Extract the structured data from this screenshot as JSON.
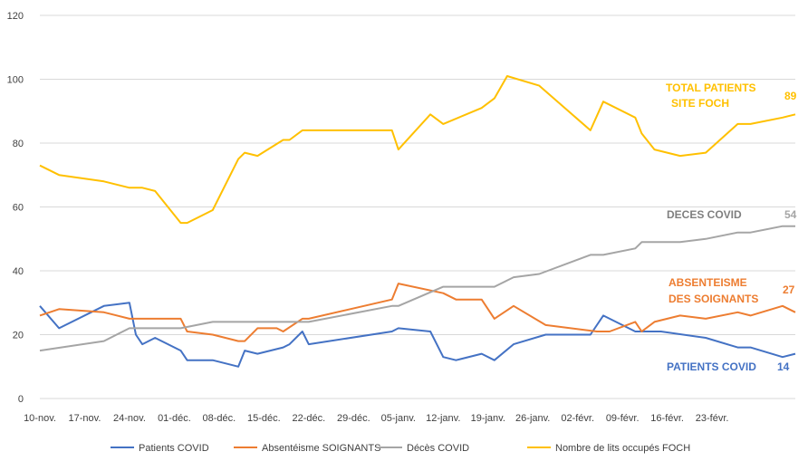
{
  "chart_data": {
    "type": "line",
    "ylim": [
      0,
      120
    ],
    "yticks": [
      "0",
      "20",
      "40",
      "60",
      "80",
      "100",
      "120"
    ],
    "x_tick_labels": [
      "10-nov.",
      "17-nov.",
      "24-nov.",
      "01-déc.",
      "08-déc.",
      "15-déc.",
      "22-déc.",
      "29-déc.",
      "05-janv.",
      "12-janv.",
      "19-janv.",
      "26-janv.",
      "02-févr.",
      "09-févr.",
      "16-févr.",
      "23-févr."
    ],
    "x_range_days": [
      0,
      118
    ],
    "grid": "horizontal",
    "legend_position": "bottom",
    "series": [
      {
        "name": "Patients COVID",
        "color": "#4472C4",
        "points": [
          [
            0,
            29
          ],
          [
            3,
            22
          ],
          [
            10,
            29
          ],
          [
            14,
            30
          ],
          [
            15,
            20
          ],
          [
            16,
            17
          ],
          [
            18,
            19
          ],
          [
            22,
            15
          ],
          [
            23,
            12
          ],
          [
            27,
            12
          ],
          [
            31,
            10
          ],
          [
            32,
            15
          ],
          [
            34,
            14
          ],
          [
            38,
            16
          ],
          [
            39,
            17
          ],
          [
            41,
            21
          ],
          [
            42,
            17
          ],
          [
            55,
            21
          ],
          [
            56,
            22
          ],
          [
            61,
            21
          ],
          [
            63,
            13
          ],
          [
            65,
            12
          ],
          [
            69,
            14
          ],
          [
            71,
            12
          ],
          [
            74,
            17
          ],
          [
            79,
            20
          ],
          [
            86,
            20
          ],
          [
            88,
            26
          ],
          [
            93,
            21
          ],
          [
            97,
            21
          ],
          [
            104,
            19
          ],
          [
            109,
            16
          ],
          [
            111,
            16
          ],
          [
            116,
            13
          ],
          [
            118,
            14
          ]
        ]
      },
      {
        "name": "Absentéisme SOIGNANTS",
        "color": "#ED7D31",
        "points": [
          [
            0,
            26
          ],
          [
            3,
            28
          ],
          [
            10,
            27
          ],
          [
            14,
            25
          ],
          [
            22,
            25
          ],
          [
            23,
            21
          ],
          [
            27,
            20
          ],
          [
            31,
            18
          ],
          [
            32,
            18
          ],
          [
            34,
            22
          ],
          [
            37,
            22
          ],
          [
            38,
            21
          ],
          [
            41,
            25
          ],
          [
            42,
            25
          ],
          [
            55,
            31
          ],
          [
            56,
            36
          ],
          [
            63,
            33
          ],
          [
            65,
            31
          ],
          [
            69,
            31
          ],
          [
            71,
            25
          ],
          [
            74,
            29
          ],
          [
            79,
            23
          ],
          [
            87,
            21
          ],
          [
            89,
            21
          ],
          [
            93,
            24
          ],
          [
            94,
            21
          ],
          [
            96,
            24
          ],
          [
            100,
            26
          ],
          [
            104,
            25
          ],
          [
            109,
            27
          ],
          [
            111,
            26
          ],
          [
            116,
            29
          ],
          [
            118,
            27
          ]
        ]
      },
      {
        "name": "Décès COVID",
        "color": "#A5A5A5",
        "points": [
          [
            0,
            15
          ],
          [
            10,
            18
          ],
          [
            14,
            22
          ],
          [
            22,
            22
          ],
          [
            27,
            24
          ],
          [
            41,
            24
          ],
          [
            42,
            24
          ],
          [
            55,
            29
          ],
          [
            56,
            29
          ],
          [
            63,
            35
          ],
          [
            71,
            35
          ],
          [
            74,
            38
          ],
          [
            78,
            39
          ],
          [
            86,
            45
          ],
          [
            88,
            45
          ],
          [
            93,
            47
          ],
          [
            94,
            49
          ],
          [
            100,
            49
          ],
          [
            104,
            50
          ],
          [
            109,
            52
          ],
          [
            111,
            52
          ],
          [
            116,
            54
          ],
          [
            118,
            54
          ]
        ]
      },
      {
        "name": "Nombre de lits occupés FOCH",
        "color": "#FFC000",
        "points": [
          [
            0,
            73
          ],
          [
            3,
            70
          ],
          [
            10,
            68
          ],
          [
            14,
            66
          ],
          [
            16,
            66
          ],
          [
            18,
            65
          ],
          [
            22,
            55
          ],
          [
            23,
            55
          ],
          [
            27,
            59
          ],
          [
            31,
            75
          ],
          [
            32,
            77
          ],
          [
            34,
            76
          ],
          [
            38,
            81
          ],
          [
            39,
            81
          ],
          [
            41,
            84
          ],
          [
            55,
            84
          ],
          [
            56,
            78
          ],
          [
            61,
            89
          ],
          [
            63,
            86
          ],
          [
            69,
            91
          ],
          [
            71,
            94
          ],
          [
            73,
            101
          ],
          [
            78,
            98
          ],
          [
            86,
            84
          ],
          [
            88,
            93
          ],
          [
            93,
            88
          ],
          [
            94,
            83
          ],
          [
            96,
            78
          ],
          [
            100,
            76
          ],
          [
            104,
            77
          ],
          [
            109,
            86
          ],
          [
            111,
            86
          ],
          [
            116,
            88
          ],
          [
            118,
            89
          ]
        ]
      }
    ],
    "annotations": [
      {
        "text": "TOTAL PATIENTS",
        "color": "#FFC000"
      },
      {
        "text": "SITE FOCH",
        "color": "#FFC000"
      },
      {
        "text": "89",
        "color": "#FFC000"
      },
      {
        "text": "DECES COVID",
        "color": "#7F7F7F"
      },
      {
        "text": "54",
        "color": "#A5A5A5"
      },
      {
        "text": "ABSENTEISME",
        "color": "#ED7D31"
      },
      {
        "text": "DES SOIGNANTS",
        "color": "#ED7D31"
      },
      {
        "text": "27",
        "color": "#ED7D31"
      },
      {
        "text": "PATIENTS COVID",
        "color": "#4472C4"
      },
      {
        "text": "14",
        "color": "#4472C4"
      }
    ]
  }
}
